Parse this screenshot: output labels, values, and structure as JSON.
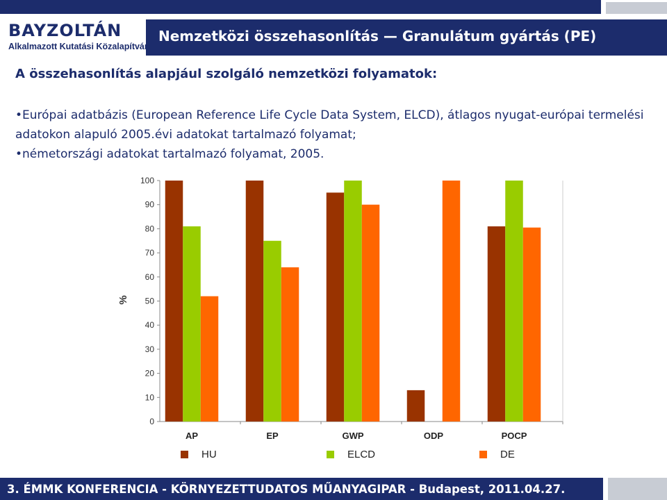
{
  "logo": {
    "name": "BAYZOLTÁN",
    "sub": "Alkalmazott Kutatási Közalapítvány"
  },
  "header": {
    "title": "Nemzetközi összehasonlítás — Granulátum gyártás (PE)"
  },
  "subtitle": "A összehasonlítás alapjául szolgáló nemzetközi folyamatok:",
  "bullets": [
    "•Európai adatbázis (European Reference Life Cycle Data System, ELCD), átlagos nyugat-európai termelési adatokon alapuló 2005.évi adatokat tartalmazó folyamat;",
    "•németországi adatokat tartalmazó folyamat, 2005."
  ],
  "footer": {
    "text": "3. ÉMMK KONFERENCIA - KÖRNYEZETTUDATOS MŰANYAGIPAR  - Budapest, 2011.04.27."
  },
  "colors": {
    "navy": "#1c2c6c",
    "HU": "#993300",
    "ELCD": "#99cc00",
    "DE": "#ff6600"
  },
  "chart_data": {
    "type": "bar",
    "categories": [
      "AP",
      "EP",
      "GWP",
      "ODP",
      "POCP"
    ],
    "series": [
      {
        "name": "HU",
        "values": [
          100,
          100,
          95,
          13,
          81
        ]
      },
      {
        "name": "ELCD",
        "values": [
          81,
          75,
          100,
          0,
          100
        ]
      },
      {
        "name": "DE",
        "values": [
          52,
          64,
          90,
          100,
          80.5
        ]
      }
    ],
    "yticks": [
      "0",
      "10",
      "20",
      "30",
      "40",
      "50",
      "60",
      "70",
      "80",
      "90",
      "100"
    ],
    "ylim": [
      0,
      100
    ],
    "ylabel": "%",
    "xlabel": "",
    "grid": false,
    "legend_position": "bottom"
  }
}
